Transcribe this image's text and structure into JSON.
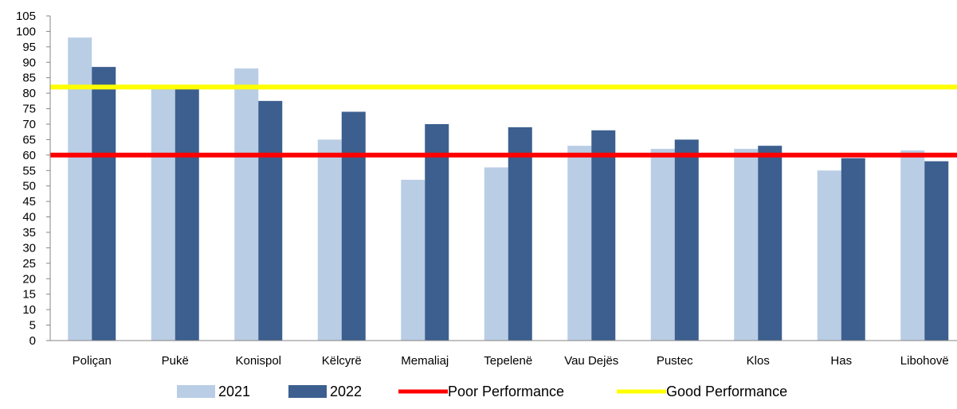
{
  "chart_data": {
    "type": "bar",
    "categories": [
      "Poliçan",
      "Pukë",
      "Konispol",
      "Këlcyrë",
      "Memaliaj",
      "Tepelenë",
      "Vau Dejës",
      "Pustec",
      "Klos",
      "Has",
      "Libohovë"
    ],
    "series": [
      {
        "name": "2021",
        "color": "#b9cde5",
        "values": [
          98,
          82,
          88,
          65,
          52,
          56,
          63,
          62,
          62,
          55,
          61.5
        ]
      },
      {
        "name": "2022",
        "color": "#3c5f8f",
        "values": [
          88.5,
          81.5,
          77.5,
          74,
          70,
          69,
          68,
          65,
          63,
          59,
          58
        ]
      }
    ],
    "reference_lines": [
      {
        "name": "Poor Performance",
        "value": 60,
        "color": "#ff0000"
      },
      {
        "name": "Good Performance",
        "value": 82,
        "color": "#ffff00"
      }
    ],
    "ylim": [
      0,
      105
    ],
    "yticks": [
      0,
      5,
      10,
      15,
      20,
      25,
      30,
      35,
      40,
      45,
      50,
      55,
      60,
      65,
      70,
      75,
      80,
      85,
      90,
      95,
      100,
      105
    ],
    "grid": false,
    "legend_position": "bottom",
    "title": "",
    "xlabel": "",
    "ylabel": ""
  }
}
